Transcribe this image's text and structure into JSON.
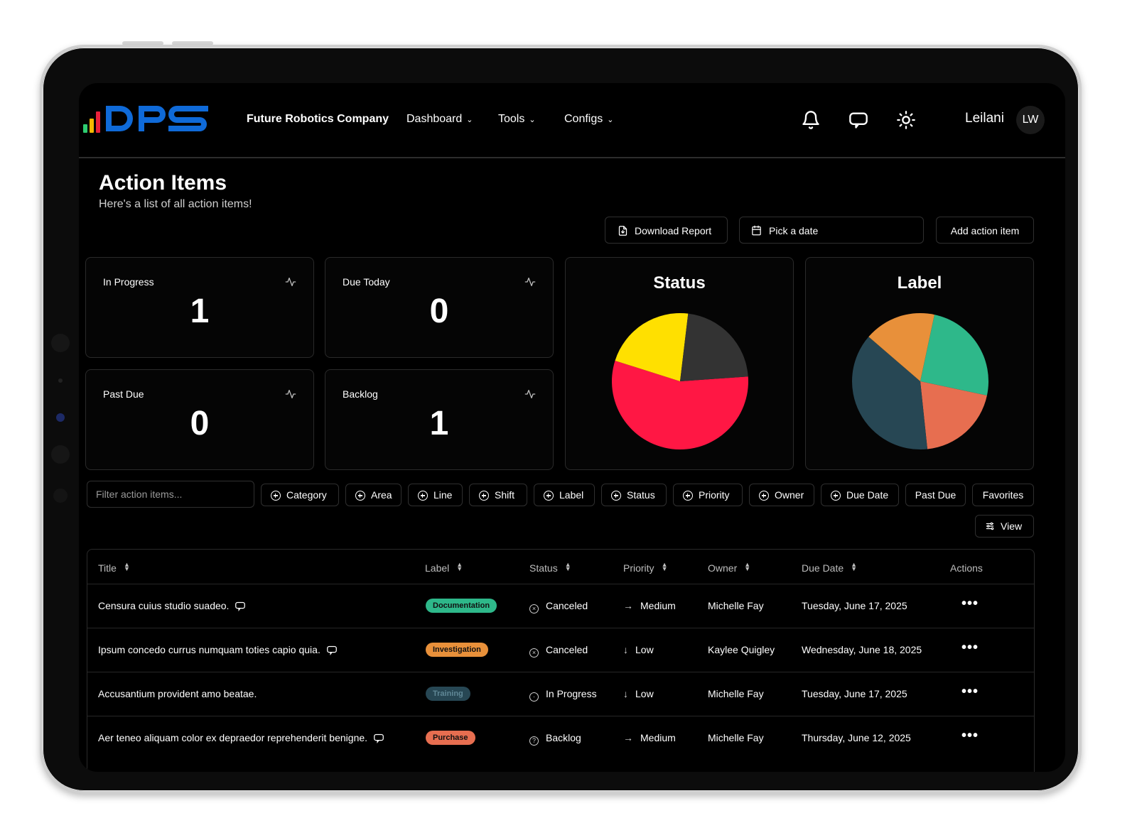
{
  "header": {
    "company": "Future Robotics Company",
    "nav": [
      {
        "label": "Dashboard"
      },
      {
        "label": "Tools"
      },
      {
        "label": "Configs"
      }
    ],
    "user_name": "Leilani",
    "avatar_initials": "LW"
  },
  "page": {
    "title": "Action Items",
    "subtitle": "Here's a list of all action items!"
  },
  "toolbar": {
    "download": "Download Report",
    "date_placeholder": "Pick a date",
    "add": "Add action item"
  },
  "stats": [
    {
      "label": "In Progress",
      "value": "1"
    },
    {
      "label": "Due Today",
      "value": "0"
    },
    {
      "label": "Past Due",
      "value": "0"
    },
    {
      "label": "Backlog",
      "value": "1"
    }
  ],
  "chart_data": [
    {
      "type": "pie",
      "title": "Status",
      "slices": [
        {
          "value": 56,
          "color": "#ff1744"
        },
        {
          "value": 22,
          "color": "#ffe000"
        },
        {
          "value": 22,
          "color": "#333333"
        }
      ]
    },
    {
      "type": "pie",
      "title": "Label",
      "slices": [
        {
          "value": 25,
          "color": "#2eb88a"
        },
        {
          "value": 20,
          "color": "#e76e50"
        },
        {
          "value": 38,
          "color": "#274754"
        },
        {
          "value": 17,
          "color": "#e8903a"
        }
      ]
    }
  ],
  "filters": {
    "placeholder": "Filter action items...",
    "chips": [
      "Category",
      "Area",
      "Line",
      "Shift",
      "Label",
      "Status",
      "Priority",
      "Owner",
      "Due Date"
    ],
    "plain_chips": [
      "Past Due",
      "Favorites"
    ],
    "view": "View"
  },
  "table": {
    "columns": [
      "Title",
      "Label",
      "Status",
      "Priority",
      "Owner",
      "Due Date",
      "Actions"
    ],
    "rows": [
      {
        "title": "Censura cuius studio suadeo.",
        "comment": true,
        "label": "Documentation",
        "label_color": "#2eb88a",
        "status": "Canceled",
        "status_icon": "x-circle-icon",
        "priority": "Medium",
        "priority_icon": "arrow-right-icon",
        "owner": "Michelle Fay",
        "due": "Tuesday, June 17, 2025"
      },
      {
        "title": "Ipsum concedo currus numquam toties capio quia.",
        "comment": true,
        "label": "Investigation",
        "label_color": "#e8903a",
        "status": "Canceled",
        "status_icon": "x-circle-icon",
        "priority": "Low",
        "priority_icon": "arrow-down-icon",
        "owner": "Kaylee Quigley",
        "due": "Wednesday, June 18, 2025"
      },
      {
        "title": "Accusantium provident amo beatae.",
        "comment": false,
        "label": "Training",
        "label_color": "#274754",
        "status": "In Progress",
        "status_icon": "timer-icon",
        "priority": "Low",
        "priority_icon": "arrow-down-icon",
        "owner": "Michelle Fay",
        "due": "Tuesday, June 17, 2025"
      },
      {
        "title": "Aer teneo aliquam color ex depraedor reprehenderit benigne.",
        "comment": true,
        "label": "Purchase",
        "label_color": "#e76e50",
        "status": "Backlog",
        "status_icon": "help-circle-icon",
        "priority": "Medium",
        "priority_icon": "arrow-right-icon",
        "owner": "Michelle Fay",
        "due": "Thursday, June 12, 2025"
      }
    ]
  }
}
